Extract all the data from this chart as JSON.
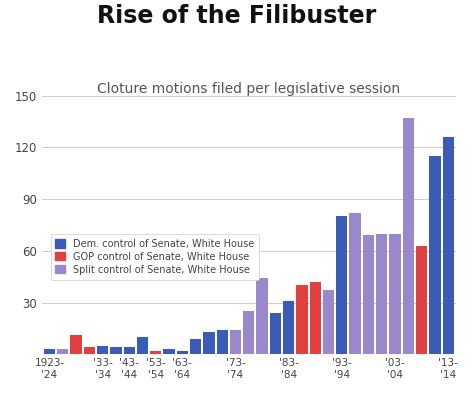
{
  "title": "Rise of the Filibuster",
  "subtitle": "Cloture motions filed per legislative session",
  "title_fontsize": 17,
  "subtitle_fontsize": 10,
  "background_color": "#ffffff",
  "ylim": [
    0,
    150
  ],
  "yticks": [
    30,
    60,
    90,
    120,
    150
  ],
  "grid_color": "#cccccc",
  "bar_color_dem": "#3a5cb8",
  "bar_color_gop": "#e04040",
  "bar_color_split": "#9988cc",
  "legend_labels": [
    "Dem. control of Senate, White House",
    "GOP control of Senate, White House",
    "Split control of Senate, White House"
  ],
  "bars": [
    {
      "label": "1923-\n'24",
      "value": 3,
      "color": "dem"
    },
    {
      "label": "",
      "value": 3,
      "color": "split"
    },
    {
      "label": "",
      "value": 11,
      "color": "gop"
    },
    {
      "label": "",
      "value": 4,
      "color": "gop"
    },
    {
      "label": "'33-\n'34",
      "value": 5,
      "color": "dem"
    },
    {
      "label": "",
      "value": 4,
      "color": "dem"
    },
    {
      "label": "'43-\n'44",
      "value": 4,
      "color": "dem"
    },
    {
      "label": "",
      "value": 10,
      "color": "dem"
    },
    {
      "label": "'53-\n'54",
      "value": 2,
      "color": "gop"
    },
    {
      "label": "",
      "value": 3,
      "color": "dem"
    },
    {
      "label": "'63-\n'64",
      "value": 2,
      "color": "dem"
    },
    {
      "label": "",
      "value": 9,
      "color": "dem"
    },
    {
      "label": "",
      "value": 13,
      "color": "dem"
    },
    {
      "label": "",
      "value": 14,
      "color": "dem"
    },
    {
      "label": "'73-\n'74",
      "value": 14,
      "color": "split"
    },
    {
      "label": "",
      "value": 25,
      "color": "split"
    },
    {
      "label": "",
      "value": 44,
      "color": "split"
    },
    {
      "label": "",
      "value": 24,
      "color": "dem"
    },
    {
      "label": "'83-\n'84",
      "value": 31,
      "color": "dem"
    },
    {
      "label": "",
      "value": 40,
      "color": "gop"
    },
    {
      "label": "",
      "value": 42,
      "color": "gop"
    },
    {
      "label": "",
      "value": 37,
      "color": "split"
    },
    {
      "label": "'93-\n'94",
      "value": 80,
      "color": "dem"
    },
    {
      "label": "",
      "value": 82,
      "color": "split"
    },
    {
      "label": "",
      "value": 69,
      "color": "split"
    },
    {
      "label": "",
      "value": 70,
      "color": "split"
    },
    {
      "label": "'03-\n'04",
      "value": 70,
      "color": "split"
    },
    {
      "label": "",
      "value": 137,
      "color": "split"
    },
    {
      "label": "",
      "value": 63,
      "color": "gop"
    },
    {
      "label": "",
      "value": 115,
      "color": "dem"
    },
    {
      "label": "'13-\n'14",
      "value": 126,
      "color": "dem"
    }
  ]
}
